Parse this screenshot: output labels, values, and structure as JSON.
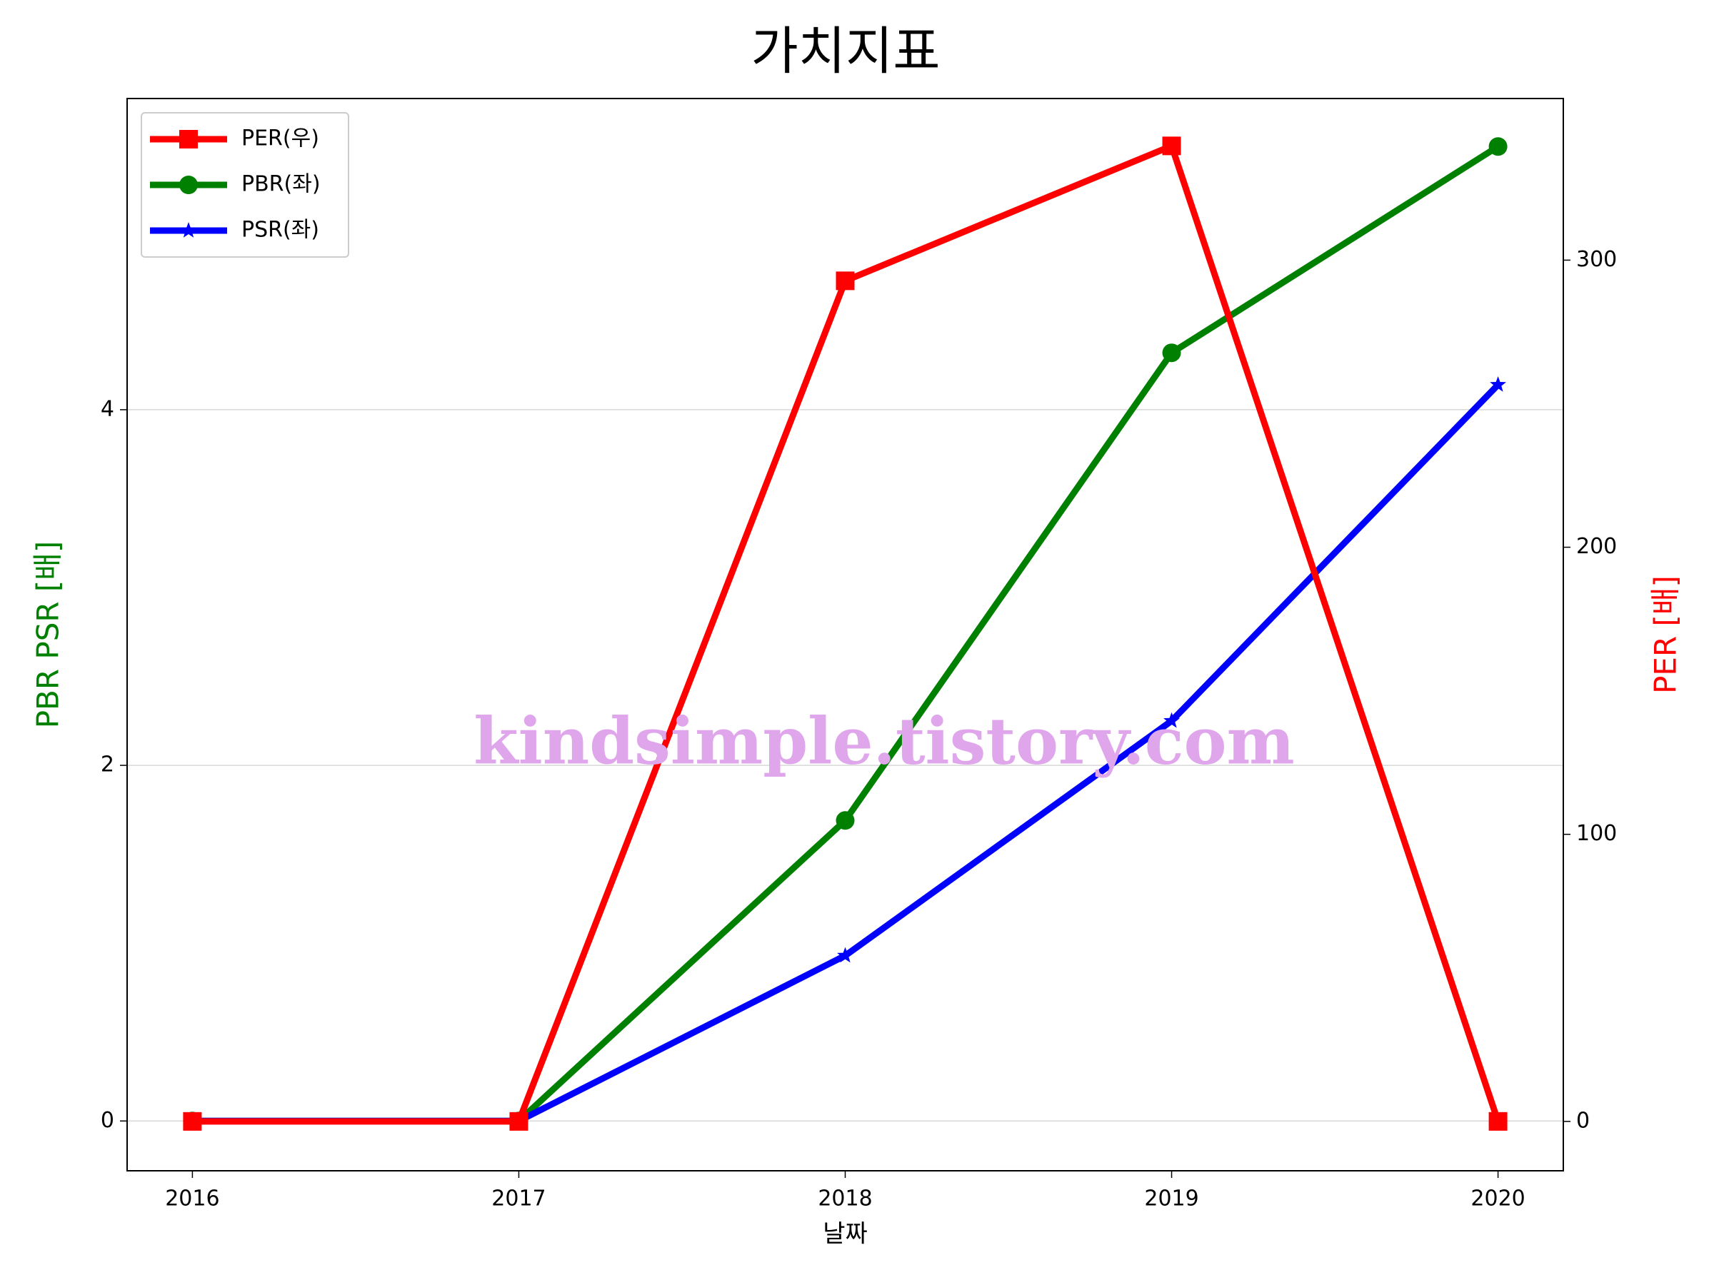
{
  "chart_data": {
    "type": "line",
    "title": "가치지표",
    "x_label": "날짜",
    "y_label": "PBR PSR [배]",
    "y2_label": "PER [배]",
    "y_label_color": "#008000",
    "y2_label_color": "#ff0000",
    "watermark": "kindsimple.tistory.com",
    "x": [
      2016,
      2017,
      2018,
      2019,
      2020
    ],
    "xlim": [
      2015.8,
      2020.2
    ],
    "xticks": [
      2016,
      2017,
      2018,
      2019,
      2020
    ],
    "ylim": [
      -0.28,
      5.75
    ],
    "yticks": [
      0,
      2,
      4
    ],
    "y2lim": [
      -17.2,
      356.3
    ],
    "y2ticks": [
      0,
      100,
      200,
      300
    ],
    "grid": true,
    "legend": "upper left",
    "series": [
      {
        "name": "PER(우)",
        "color": "#ff0000",
        "marker": "square",
        "axis": "y2",
        "values": [
          0,
          0,
          292.8,
          339.8,
          0
        ]
      },
      {
        "name": "PBR(좌)",
        "color": "#008000",
        "marker": "circle",
        "values": [
          0,
          0,
          1.69,
          4.32,
          5.48
        ]
      },
      {
        "name": "PSR(좌)",
        "color": "#0000ff",
        "marker": "star",
        "values": [
          0,
          0,
          0.93,
          2.25,
          4.14
        ]
      }
    ]
  }
}
